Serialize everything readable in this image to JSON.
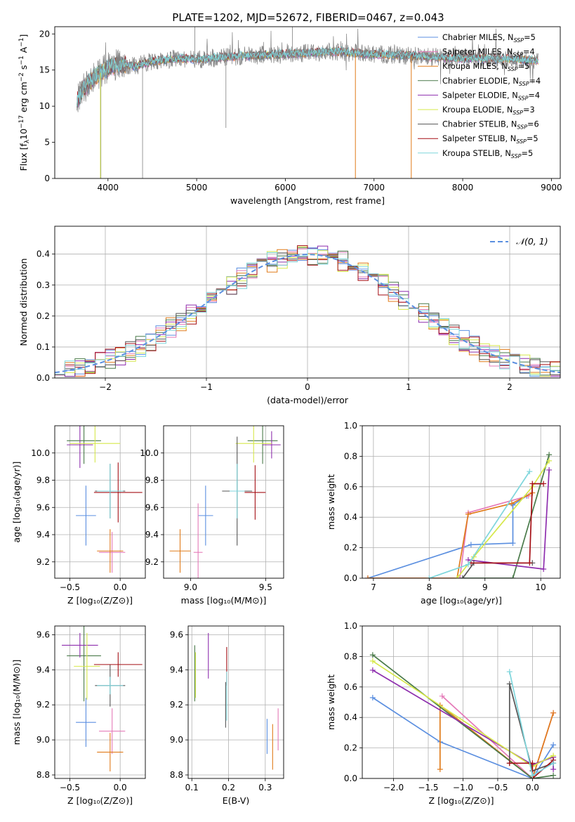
{
  "figure": {
    "title": "PLATE=1202, MJD=52672, FIBERID=0467, z=0.043"
  },
  "colors": {
    "Chabrier MILES": "#5b8fe0",
    "Salpeter MILES": "#e57ab8",
    "Kroupa MILES": "#e07b1a",
    "Chabrier ELODIE": "#4a7a4a",
    "Salpeter ELODIE": "#8e2fae",
    "Kroupa ELODIE": "#d6e84a",
    "Chabrier STELIB": "#555555",
    "Salpeter STELIB": "#a50f15",
    "Kroupa STELIB": "#7fd6dc"
  },
  "chart_data": [
    {
      "id": "spectrum",
      "type": "line",
      "title": "PLATE=1202, MJD=52672, FIBERID=0467, z=0.043",
      "xlabel": "wavelength [Angstrom, rest frame]",
      "ylabel": "Flux [f_λ 10^-17 erg cm^-2 s^-1 A^-1]",
      "xlim": [
        3400,
        9100
      ],
      "ylim": [
        0,
        21
      ],
      "xticks": [
        4000,
        5000,
        6000,
        7000,
        8000,
        9000
      ],
      "yticks": [
        0,
        5,
        10,
        15,
        20
      ],
      "grid": false,
      "legend_position": "top-right",
      "legend": [
        {
          "model": "Chabrier MILES",
          "label": "Chabrier MILES, N",
          "sub": "SSP",
          "tail": "=5"
        },
        {
          "model": "Salpeter MILES",
          "label": "Salpeter MILES, N",
          "sub": "SSP",
          "tail": "=4"
        },
        {
          "model": "Kroupa MILES",
          "label": "Kroupa MILES, N",
          "sub": "SSP",
          "tail": "=5"
        },
        {
          "model": "Chabrier ELODIE",
          "label": "Chabrier ELODIE, N",
          "sub": "SSP",
          "tail": "=4"
        },
        {
          "model": "Salpeter ELODIE",
          "label": "Salpeter ELODIE, N",
          "sub": "SSP",
          "tail": "=4"
        },
        {
          "model": "Kroupa ELODIE",
          "label": "Kroupa ELODIE, N",
          "sub": "SSP",
          "tail": "=3"
        },
        {
          "model": "Chabrier STELIB",
          "label": "Chabrier STELIB, N",
          "sub": "SSP",
          "tail": "=6"
        },
        {
          "model": "Salpeter STELIB",
          "label": "Salpeter STELIB, N",
          "sub": "SSP",
          "tail": "=5"
        },
        {
          "model": "Kroupa STELIB",
          "label": "Kroupa STELIB, N",
          "sub": "SSP",
          "tail": "=5"
        }
      ],
      "data_continuum": {
        "x": [
          3650,
          3700,
          3800,
          3900,
          4000,
          4100,
          4300,
          4500,
          4800,
          5000,
          5300,
          5600,
          6000,
          6300,
          6600,
          6800,
          7000,
          7400,
          7800,
          8200,
          8600,
          8850
        ],
        "y": [
          10.5,
          12,
          13.5,
          14.5,
          15.3,
          15.8,
          15.5,
          16.2,
          16.6,
          16.5,
          16.8,
          17.0,
          17.2,
          17.4,
          17.6,
          17.3,
          17.2,
          17.0,
          16.7,
          16.6,
          16.5,
          16.3
        ]
      },
      "model_lines_dropping": [
        {
          "model": "Kroupa ELODIE",
          "x": 3915
        },
        {
          "model": "Kroupa MILES",
          "x": 6790
        },
        {
          "model": "Kroupa MILES",
          "x": 7420
        }
      ]
    },
    {
      "id": "residuals",
      "type": "step",
      "xlabel": "(data-model)/error",
      "ylabel": "Normed distribution",
      "xlim": [
        -2.5,
        2.5
      ],
      "ylim": [
        0,
        0.49
      ],
      "xticks": [
        -2,
        -1,
        0,
        1,
        2
      ],
      "yticks": [
        0.0,
        0.1,
        0.2,
        0.3,
        0.4
      ],
      "grid": true,
      "legend_position": "top-right",
      "reference": {
        "label": "𝒩(0, 1)",
        "mean": 0,
        "sigma": 1
      },
      "bin_width": 0.1
    },
    {
      "id": "age-vs-Z",
      "type": "errorbar",
      "xlabel": "Z [log10(Z/Z☉)]",
      "ylabel": "age  [log10(age/yr)]",
      "xlim": [
        -0.65,
        0.25
      ],
      "ylim": [
        9.08,
        10.2
      ],
      "xticks": [
        -0.5,
        0.0
      ],
      "yticks": [
        9.2,
        9.4,
        9.6,
        9.8,
        10.0
      ],
      "grid": true,
      "points": [
        {
          "model": "Chabrier MILES",
          "x": -0.34,
          "y": 9.54,
          "xerr": 0.1,
          "yerr": 0.22
        },
        {
          "model": "Salpeter MILES",
          "x": -0.08,
          "y": 9.27,
          "xerr": 0.13,
          "yerr": 0.15
        },
        {
          "model": "Kroupa MILES",
          "x": -0.1,
          "y": 9.28,
          "xerr": 0.13,
          "yerr": 0.16
        },
        {
          "model": "Chabrier ELODIE",
          "x": -0.36,
          "y": 10.09,
          "xerr": 0.17,
          "yerr": 0.17
        },
        {
          "model": "Salpeter ELODIE",
          "x": -0.4,
          "y": 10.06,
          "xerr": 0.13,
          "yerr": 0.17
        },
        {
          "model": "Kroupa ELODIE",
          "x": -0.25,
          "y": 10.07,
          "xerr": 0.25,
          "yerr": 0.14
        },
        {
          "model": "Chabrier STELIB",
          "x": -0.1,
          "y": 9.72,
          "xerr": 0.15,
          "yerr": 0.2
        },
        {
          "model": "Salpeter STELIB",
          "x": -0.02,
          "y": 9.71,
          "xerr": 0.24,
          "yerr": 0.22
        },
        {
          "model": "Kroupa STELIB",
          "x": -0.1,
          "y": 9.72,
          "xerr": 0.13,
          "yerr": 0.2
        }
      ]
    },
    {
      "id": "age-vs-mass",
      "type": "errorbar",
      "xlabel": "mass [log10(M/M☉)]",
      "ylabel": "",
      "xlim": [
        8.82,
        9.62
      ],
      "ylim": [
        9.08,
        10.2
      ],
      "xticks": [
        9.0,
        9.5
      ],
      "yticks": [
        9.2,
        9.4,
        9.6,
        9.8,
        10.0
      ],
      "grid": true,
      "points": [
        {
          "model": "Chabrier MILES",
          "x": 9.1,
          "y": 9.54,
          "xerr": 0.05,
          "yerr": 0.22
        },
        {
          "model": "Salpeter MILES",
          "x": 9.05,
          "y": 9.27,
          "xerr": 0.03,
          "yerr": 0.36
        },
        {
          "model": "Kroupa MILES",
          "x": 8.93,
          "y": 9.28,
          "xerr": 0.07,
          "yerr": 0.16
        },
        {
          "model": "Chabrier ELODIE",
          "x": 9.48,
          "y": 10.09,
          "xerr": 0.1,
          "yerr": 0.17
        },
        {
          "model": "Salpeter ELODIE",
          "x": 9.54,
          "y": 10.06,
          "xerr": 0.06,
          "yerr": 0.1
        },
        {
          "model": "Kroupa ELODIE",
          "x": 9.42,
          "y": 10.07,
          "xerr": 0.12,
          "yerr": 0.14
        },
        {
          "model": "Chabrier STELIB",
          "x": 9.31,
          "y": 9.72,
          "xerr": 0.1,
          "yerr": 0.4
        },
        {
          "model": "Salpeter STELIB",
          "x": 9.43,
          "y": 9.71,
          "xerr": 0.07,
          "yerr": 0.2
        },
        {
          "model": "Kroupa STELIB",
          "x": 9.31,
          "y": 9.72,
          "xerr": 0.05,
          "yerr": 0.2
        }
      ]
    },
    {
      "id": "weight-vs-age",
      "type": "line",
      "xlabel": "age  [log10(age/yr)]",
      "ylabel": "mass weight",
      "xlim": [
        6.8,
        10.35
      ],
      "ylim": [
        0,
        1.0
      ],
      "xticks": [
        7,
        8,
        9,
        10
      ],
      "yticks": [
        0.0,
        0.2,
        0.4,
        0.6,
        0.8,
        1.0
      ],
      "grid": true,
      "series": [
        {
          "model": "Chabrier MILES",
          "x": [
            6.9,
            8.75,
            9.5,
            9.5,
            9.75
          ],
          "y": [
            0.0,
            0.22,
            0.23,
            0.48,
            0.54
          ]
        },
        {
          "model": "Salpeter MILES",
          "x": [
            6.9,
            8.55,
            8.7,
            9.78
          ],
          "y": [
            0.0,
            0.0,
            0.43,
            0.54
          ]
        },
        {
          "model": "Kroupa MILES",
          "x": [
            6.9,
            8.5,
            8.7,
            9.48,
            9.85
          ],
          "y": [
            0.0,
            0.0,
            0.42,
            0.49,
            0.56
          ]
        },
        {
          "model": "Chabrier ELODIE",
          "x": [
            8.6,
            9.5,
            10.15
          ],
          "y": [
            0.0,
            0.0,
            0.81
          ]
        },
        {
          "model": "Salpeter ELODIE",
          "x": [
            8.7,
            10.05,
            10.15
          ],
          "y": [
            0.12,
            0.06,
            0.71
          ]
        },
        {
          "model": "Kroupa ELODIE",
          "x": [
            8.5,
            8.8,
            9.85,
            10.15
          ],
          "y": [
            0.0,
            0.14,
            0.6,
            0.77
          ]
        },
        {
          "model": "Chabrier STELIB",
          "x": [
            8.6,
            8.8,
            9.85
          ],
          "y": [
            0.0,
            0.1,
            0.1
          ]
        },
        {
          "model": "Salpeter STELIB",
          "x": [
            8.75,
            9.8,
            9.85,
            10.05
          ],
          "y": [
            0.1,
            0.1,
            0.62,
            0.62
          ]
        },
        {
          "model": "Kroupa STELIB",
          "x": [
            8.0,
            8.7,
            9.8
          ],
          "y": [
            0.0,
            0.09,
            0.7
          ]
        }
      ]
    },
    {
      "id": "mass-vs-Z",
      "type": "errorbar",
      "xlabel": "Z [log10(Z/Z☉)]",
      "ylabel": "mass [log10(M/M☉)]",
      "xlim": [
        -0.65,
        0.25
      ],
      "ylim": [
        8.78,
        9.65
      ],
      "xticks": [
        -0.5,
        0.0
      ],
      "yticks": [
        8.8,
        9.0,
        9.2,
        9.4,
        9.6
      ],
      "grid": true,
      "points": [
        {
          "model": "Chabrier MILES",
          "x": -0.34,
          "y": 9.1,
          "xerr": 0.1,
          "yerr": 0.14
        },
        {
          "model": "Salpeter MILES",
          "x": -0.08,
          "y": 9.05,
          "xerr": 0.13,
          "yerr": 0.13
        },
        {
          "model": "Kroupa MILES",
          "x": -0.1,
          "y": 8.93,
          "xerr": 0.13,
          "yerr": 0.11
        },
        {
          "model": "Chabrier ELODIE",
          "x": -0.36,
          "y": 9.48,
          "xerr": 0.17,
          "yerr": 0.26
        },
        {
          "model": "Salpeter ELODIE",
          "x": -0.4,
          "y": 9.54,
          "xerr": 0.18,
          "yerr": 0.07
        },
        {
          "model": "Kroupa ELODIE",
          "x": -0.33,
          "y": 9.42,
          "xerr": 0.13,
          "yerr": 0.19
        },
        {
          "model": "Chabrier STELIB",
          "x": -0.1,
          "y": 9.31,
          "xerr": 0.15,
          "yerr": 0.12
        },
        {
          "model": "Salpeter STELIB",
          "x": -0.02,
          "y": 9.43,
          "xerr": 0.24,
          "yerr": 0.07
        },
        {
          "model": "Kroupa STELIB",
          "x": -0.1,
          "y": 9.31,
          "xerr": 0.13,
          "yerr": 0.05
        }
      ]
    },
    {
      "id": "mass-vs-EBV",
      "type": "errorbar",
      "xlabel": "E(B-V)",
      "ylabel": "",
      "xlim": [
        0.09,
        0.35
      ],
      "ylim": [
        8.78,
        9.65
      ],
      "xticks": [
        0.1,
        0.2,
        0.3
      ],
      "yticks": [
        8.8,
        9.0,
        9.2,
        9.4,
        9.6
      ],
      "grid": true,
      "points": [
        {
          "model": "Chabrier MILES",
          "x": 0.305,
          "y": 9.02,
          "xerr": 0,
          "yerr": 0.1
        },
        {
          "model": "Salpeter MILES",
          "x": 0.335,
          "y": 9.06,
          "xerr": 0,
          "yerr": 0.12
        },
        {
          "model": "Kroupa MILES",
          "x": 0.32,
          "y": 8.96,
          "xerr": 0,
          "yerr": 0.13
        },
        {
          "model": "Chabrier ELODIE",
          "x": 0.108,
          "y": 9.38,
          "xerr": 0,
          "yerr": 0.16
        },
        {
          "model": "Salpeter ELODIE",
          "x": 0.145,
          "y": 9.48,
          "xerr": 0,
          "yerr": 0.13
        },
        {
          "model": "Kroupa ELODIE",
          "x": 0.11,
          "y": 9.37,
          "xerr": 0,
          "yerr": 0.13
        },
        {
          "model": "Chabrier STELIB",
          "x": 0.192,
          "y": 9.2,
          "xerr": 0,
          "yerr": 0.13
        },
        {
          "model": "Salpeter STELIB",
          "x": 0.195,
          "y": 9.42,
          "xerr": 0,
          "yerr": 0.11
        },
        {
          "model": "Kroupa STELIB",
          "x": 0.195,
          "y": 9.25,
          "xerr": 0,
          "yerr": 0.14
        }
      ]
    },
    {
      "id": "weight-vs-Z",
      "type": "line",
      "xlabel": "Z [log10(Z/Z☉)]",
      "ylabel": "mass weight",
      "xlim": [
        -2.45,
        0.4
      ],
      "ylim": [
        0,
        1.0
      ],
      "xticks": [
        -2.0,
        -1.5,
        -1.0,
        -0.5,
        0.0
      ],
      "yticks": [
        0.0,
        0.2,
        0.4,
        0.6,
        0.8,
        1.0
      ],
      "grid": true,
      "series": [
        {
          "model": "Chabrier MILES",
          "x": [
            -2.3,
            -1.33,
            0.0,
            0.3
          ],
          "y": [
            0.53,
            0.24,
            0.0,
            0.22
          ]
        },
        {
          "model": "Salpeter MILES",
          "x": [
            -1.3,
            0.0,
            0.3
          ],
          "y": [
            0.54,
            0.0,
            0.43
          ]
        },
        {
          "model": "Kroupa MILES",
          "x": [
            -1.33,
            -1.33,
            0.0,
            0.3
          ],
          "y": [
            0.06,
            0.48,
            0.0,
            0.43
          ]
        },
        {
          "model": "Chabrier ELODIE",
          "x": [
            -2.3,
            0.0,
            0.3
          ],
          "y": [
            0.81,
            0.0,
            0.02
          ]
        },
        {
          "model": "Salpeter ELODIE",
          "x": [
            -2.3,
            0.0,
            0.3,
            0.3
          ],
          "y": [
            0.71,
            0.09,
            0.14,
            0.06
          ]
        },
        {
          "model": "Kroupa ELODIE",
          "x": [
            -2.3,
            0.0,
            0.3
          ],
          "y": [
            0.77,
            0.08,
            0.15
          ]
        },
        {
          "model": "Chabrier STELIB",
          "x": [
            -0.33,
            -0.33,
            0.0,
            0.3
          ],
          "y": [
            0.1,
            0.62,
            0.05,
            0.1
          ]
        },
        {
          "model": "Salpeter STELIB",
          "x": [
            -0.33,
            0.0,
            0.0,
            0.3
          ],
          "y": [
            0.1,
            0.1,
            0.0,
            0.12
          ]
        },
        {
          "model": "Kroupa STELIB",
          "x": [
            -0.33,
            0.0,
            0.3
          ],
          "y": [
            0.7,
            0.02,
            0.1
          ]
        }
      ]
    }
  ]
}
